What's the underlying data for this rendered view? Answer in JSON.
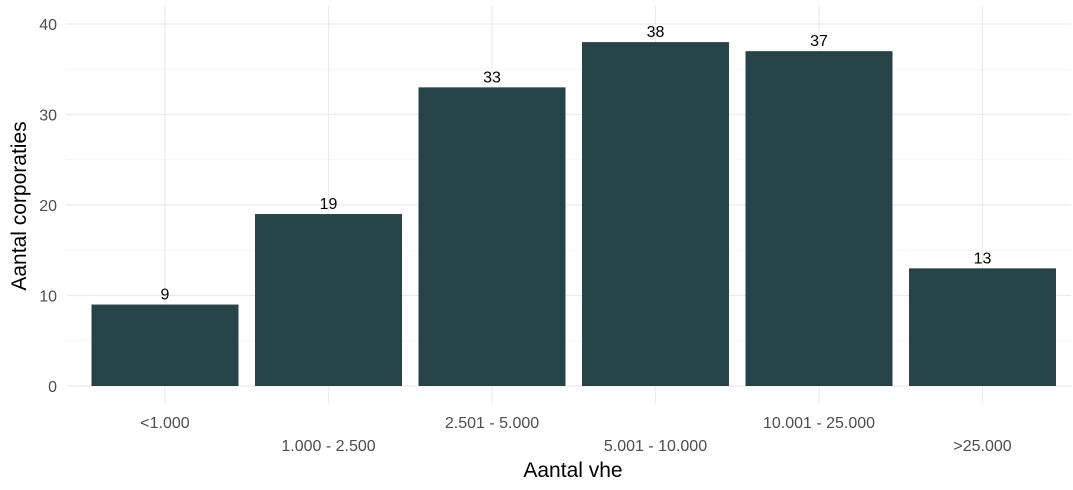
{
  "chart_data": {
    "type": "bar",
    "title": "",
    "xlabel": "Aantal vhe",
    "ylabel": "Aantal corporaties",
    "categories": [
      "<1.000",
      "1.000 - 2.500",
      "2.501 - 5.000",
      "5.001 - 10.000",
      "10.001 -  25.000",
      ">25.000"
    ],
    "values": [
      9,
      19,
      33,
      38,
      37,
      13
    ],
    "y_ticks": [
      0,
      10,
      20,
      30,
      40
    ],
    "ylim": [
      0,
      40
    ],
    "grid": true,
    "legend": "none",
    "bar_color": "#264348",
    "x_labels_staggered": true
  }
}
